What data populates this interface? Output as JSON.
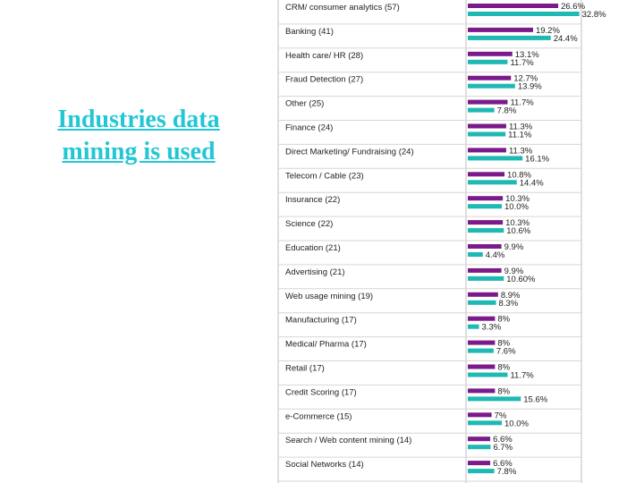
{
  "slide": {
    "title": "Industries data mining is used"
  },
  "chart_data": {
    "type": "bar",
    "orientation": "horizontal",
    "categories": [
      "CRM/ consumer analytics (57)",
      "Banking (41)",
      "Health care/ HR (28)",
      "Fraud Detection (27)",
      "Other (25)",
      "Finance (24)",
      "Direct Marketing/ Fundraising (24)",
      "Telecom / Cable (23)",
      "Insurance (22)",
      "Science (22)",
      "Education (21)",
      "Advertising (21)",
      "Web usage mining (19)",
      "Manufacturing (17)",
      "Medical/ Pharma (17)",
      "Retail (17)",
      "Credit Scoring (17)",
      "e-Commerce (15)",
      "Search / Web content mining (14)",
      "Social Networks (14)"
    ],
    "series": [
      {
        "color": "#7b1a8a",
        "values": [
          26.6,
          19.2,
          13.1,
          12.7,
          11.7,
          11.3,
          11.3,
          10.8,
          10.3,
          10.3,
          9.9,
          9.9,
          8.9,
          8,
          8,
          8,
          8,
          7,
          6.6,
          6.6
        ],
        "labels": [
          "26.6%",
          "19.2%",
          "13.1%",
          "12.7%",
          "11.7%",
          "11.3%",
          "11.3%",
          "10.8%",
          "10.3%",
          "10.3%",
          "9.9%",
          "9.9%",
          "8.9%",
          "8%",
          "8%",
          "8%",
          "8%",
          "7%",
          "6.6%",
          "6.6%"
        ]
      },
      {
        "color": "#1fb8b3",
        "values": [
          32.8,
          24.4,
          11.7,
          13.9,
          7.8,
          11.1,
          16.1,
          14.4,
          10,
          10.6,
          4.4,
          10.6,
          8.3,
          3.3,
          7.6,
          11.7,
          15.6,
          10,
          6.7,
          7.8
        ],
        "labels": [
          "32.8%",
          "24.4%",
          "11.7%",
          "13.9%",
          "7.8%",
          "11.1%",
          "16.1%",
          "14.4%",
          "10.0%",
          "10.6%",
          "4.4%",
          "10.60%",
          "8.3%",
          "3.3%",
          "7.6%",
          "11.7%",
          "15.6%",
          "10.0%",
          "6.7%",
          "7.8%"
        ]
      }
    ],
    "xlim": [
      0,
      40
    ],
    "grid": true,
    "legend": "none"
  }
}
